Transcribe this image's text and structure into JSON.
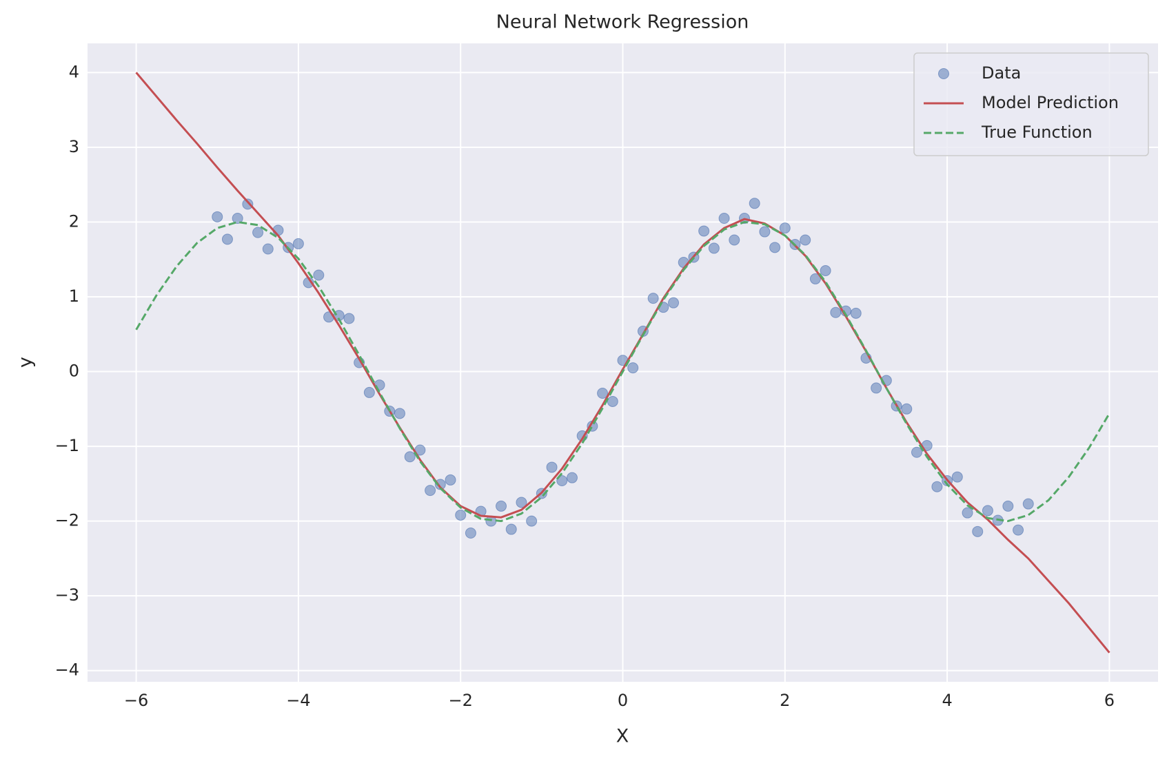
{
  "chart_data": {
    "type": "line",
    "title": "Neural Network Regression",
    "xlabel": "X",
    "ylabel": "y",
    "xlim": [
      -6.6,
      6.6
    ],
    "ylim": [
      -4.15,
      4.39
    ],
    "xticks": [
      {
        "value": -6,
        "label": "−6"
      },
      {
        "value": -4,
        "label": "−4"
      },
      {
        "value": -2,
        "label": "−2"
      },
      0,
      2,
      4,
      6
    ],
    "yticks": [
      {
        "value": -4,
        "label": "−4"
      },
      {
        "value": -3,
        "label": "−3"
      },
      {
        "value": -2,
        "label": "−2"
      },
      {
        "value": -1,
        "label": "−1"
      },
      0,
      1,
      2,
      3,
      4
    ],
    "grid": true,
    "legend": "upper right",
    "series": [
      {
        "name": "Data",
        "kind": "scatter",
        "color": "#4c72b0",
        "x": [
          -5,
          -4.875,
          -4.75,
          -4.625,
          -4.5,
          -4.375,
          -4.25,
          -4.125,
          -4,
          -3.875,
          -3.75,
          -3.625,
          -3.5,
          -3.375,
          -3.25,
          -3.125,
          -3,
          -2.875,
          -2.75,
          -2.625,
          -2.5,
          -2.375,
          -2.25,
          -2.125,
          -2,
          -1.875,
          -1.75,
          -1.625,
          -1.5,
          -1.375,
          -1.25,
          -1.125,
          -1,
          -0.875,
          -0.75,
          -0.625,
          -0.5,
          -0.375,
          -0.25,
          -0.125,
          0,
          0.125,
          0.25,
          0.375,
          0.5,
          0.625,
          0.75,
          0.875,
          1,
          1.125,
          1.25,
          1.375,
          1.5,
          1.625,
          1.75,
          1.875,
          2,
          2.125,
          2.25,
          2.375,
          2.5,
          2.625,
          2.75,
          2.875,
          3,
          3.125,
          3.25,
          3.375,
          3.5,
          3.625,
          3.75,
          3.875,
          4,
          4.125,
          4.25,
          4.375,
          4.5,
          4.625,
          4.75,
          4.875,
          5
        ],
        "values": [
          2.07,
          1.77,
          2.05,
          2.24,
          1.86,
          1.64,
          1.89,
          1.66,
          1.71,
          1.19,
          1.29,
          0.73,
          0.75,
          0.71,
          0.12,
          -0.28,
          -0.18,
          -0.53,
          -0.56,
          -1.14,
          -1.05,
          -1.59,
          -1.51,
          -1.45,
          -1.92,
          -2.16,
          -1.87,
          -2.0,
          -1.8,
          -2.11,
          -1.75,
          -2.0,
          -1.63,
          -1.28,
          -1.46,
          -1.42,
          -0.86,
          -0.73,
          -0.29,
          -0.4,
          0.15,
          0.05,
          0.54,
          0.98,
          0.86,
          0.92,
          1.46,
          1.53,
          1.88,
          1.65,
          2.05,
          1.76,
          2.05,
          2.25,
          1.87,
          1.66,
          1.92,
          1.7,
          1.76,
          1.24,
          1.35,
          0.79,
          0.81,
          0.78,
          0.18,
          -0.22,
          -0.12,
          -0.46,
          -0.5,
          -1.08,
          -0.99,
          -1.54,
          -1.46,
          -1.41,
          -1.89,
          -2.14,
          -1.86,
          -1.99,
          -1.8,
          -2.12,
          -1.77
        ]
      },
      {
        "name": "Model Prediction",
        "kind": "line",
        "color": "#c44e52",
        "x": [
          -6,
          -5.75,
          -5.5,
          -5.25,
          -5,
          -4.75,
          -4.5,
          -4.25,
          -4,
          -3.75,
          -3.5,
          -3.25,
          -3,
          -2.75,
          -2.5,
          -2.25,
          -2,
          -1.75,
          -1.5,
          -1.25,
          -1,
          -0.75,
          -0.5,
          -0.25,
          0,
          0.25,
          0.5,
          0.75,
          1,
          1.25,
          1.5,
          1.75,
          2,
          2.25,
          2.5,
          2.75,
          3,
          3.25,
          3.5,
          3.75,
          4,
          4.25,
          4.5,
          4.75,
          5,
          5.25,
          5.5,
          5.75,
          6
        ],
        "values": [
          4.0,
          3.68,
          3.36,
          3.05,
          2.73,
          2.42,
          2.12,
          1.82,
          1.45,
          1.05,
          0.62,
          0.17,
          -0.3,
          -0.75,
          -1.18,
          -1.55,
          -1.8,
          -1.93,
          -1.95,
          -1.85,
          -1.62,
          -1.3,
          -0.9,
          -0.45,
          0.03,
          0.5,
          0.98,
          1.38,
          1.7,
          1.92,
          2.04,
          1.98,
          1.82,
          1.55,
          1.18,
          0.74,
          0.27,
          -0.22,
          -0.68,
          -1.1,
          -1.45,
          -1.75,
          -1.98,
          -2.25,
          -2.5,
          -2.8,
          -3.1,
          -3.43,
          -3.76
        ]
      },
      {
        "name": "True Function",
        "kind": "line",
        "dashed": true,
        "color": "#55a868",
        "x": [
          -6,
          -5.75,
          -5.5,
          -5.25,
          -5,
          -4.75,
          -4.5,
          -4.25,
          -4,
          -3.75,
          -3.5,
          -3.25,
          -3,
          -2.75,
          -2.5,
          -2.25,
          -2,
          -1.75,
          -1.5,
          -1.25,
          -1,
          -0.75,
          -0.5,
          -0.25,
          0,
          0.25,
          0.5,
          0.75,
          1,
          1.25,
          1.5,
          1.75,
          2,
          2.25,
          2.5,
          2.75,
          3,
          3.25,
          3.5,
          3.75,
          4,
          4.25,
          4.5,
          4.75,
          5,
          5.25,
          5.5,
          5.75,
          6
        ],
        "values": [
          0.56,
          1.02,
          1.41,
          1.72,
          1.92,
          2.0,
          1.96,
          1.79,
          1.51,
          1.14,
          0.7,
          0.22,
          -0.28,
          -0.76,
          -1.2,
          -1.56,
          -1.82,
          -1.97,
          -2.0,
          -1.9,
          -1.68,
          -1.36,
          -0.96,
          -0.49,
          0,
          0.49,
          0.96,
          1.36,
          1.68,
          1.9,
          2.0,
          1.97,
          1.82,
          1.56,
          1.2,
          0.76,
          0.28,
          -0.22,
          -0.7,
          -1.14,
          -1.51,
          -1.79,
          -1.96,
          -2.0,
          -1.92,
          -1.72,
          -1.41,
          -1.02,
          -0.56
        ]
      }
    ]
  }
}
